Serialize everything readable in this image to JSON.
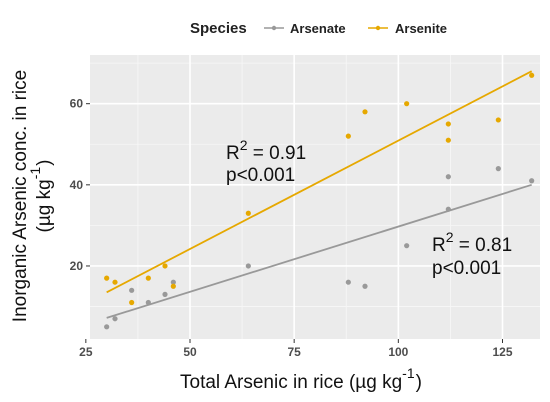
{
  "chart_data": {
    "type": "scatter",
    "xlabel": "Total Arsenic in rice (µg kg",
    "xlabel_sup": "-1",
    "xlabel_close": ")",
    "ylabel_line1": "Inorganic Arsenic conc. in rice",
    "ylabel_line2": "(µg kg",
    "ylabel_sup": "-1",
    "ylabel_close": ")",
    "xlim": [
      26,
      134
    ],
    "ylim": [
      2,
      72
    ],
    "x_ticks": [
      25,
      50,
      75,
      100,
      125
    ],
    "y_ticks": [
      20,
      40,
      60
    ],
    "grid": true,
    "legend": {
      "title": "Species",
      "position": "top"
    },
    "series": [
      {
        "name": "Arsenate",
        "color": "#999999",
        "points": [
          [
            30,
            5
          ],
          [
            32,
            7
          ],
          [
            36,
            14
          ],
          [
            40,
            11
          ],
          [
            44,
            13
          ],
          [
            46,
            16
          ],
          [
            64,
            20
          ],
          [
            88,
            16
          ],
          [
            92,
            15
          ],
          [
            102,
            25
          ],
          [
            112,
            42
          ],
          [
            112,
            34
          ],
          [
            124,
            44
          ],
          [
            132,
            41
          ]
        ],
        "fit": [
          [
            30,
            7.2
          ],
          [
            132,
            40
          ]
        ],
        "annotation": {
          "r2_label": "R",
          "r2_sup": "2",
          "r2_value": " = 0.81",
          "p": "p<0.001"
        }
      },
      {
        "name": "Arsenite",
        "color": "#E6A800",
        "points": [
          [
            30,
            17
          ],
          [
            32,
            16
          ],
          [
            36,
            11
          ],
          [
            40,
            17
          ],
          [
            44,
            20
          ],
          [
            46,
            15
          ],
          [
            64,
            33
          ],
          [
            88,
            52
          ],
          [
            92,
            58
          ],
          [
            102,
            60
          ],
          [
            112,
            55
          ],
          [
            112,
            51
          ],
          [
            124,
            56
          ],
          [
            132,
            67
          ]
        ],
        "fit": [
          [
            30,
            13.5
          ],
          [
            132,
            68
          ]
        ],
        "annotation": {
          "r2_label": "R",
          "r2_sup": "2",
          "r2_value": " = 0.91",
          "p": "p<0.001"
        }
      }
    ]
  }
}
